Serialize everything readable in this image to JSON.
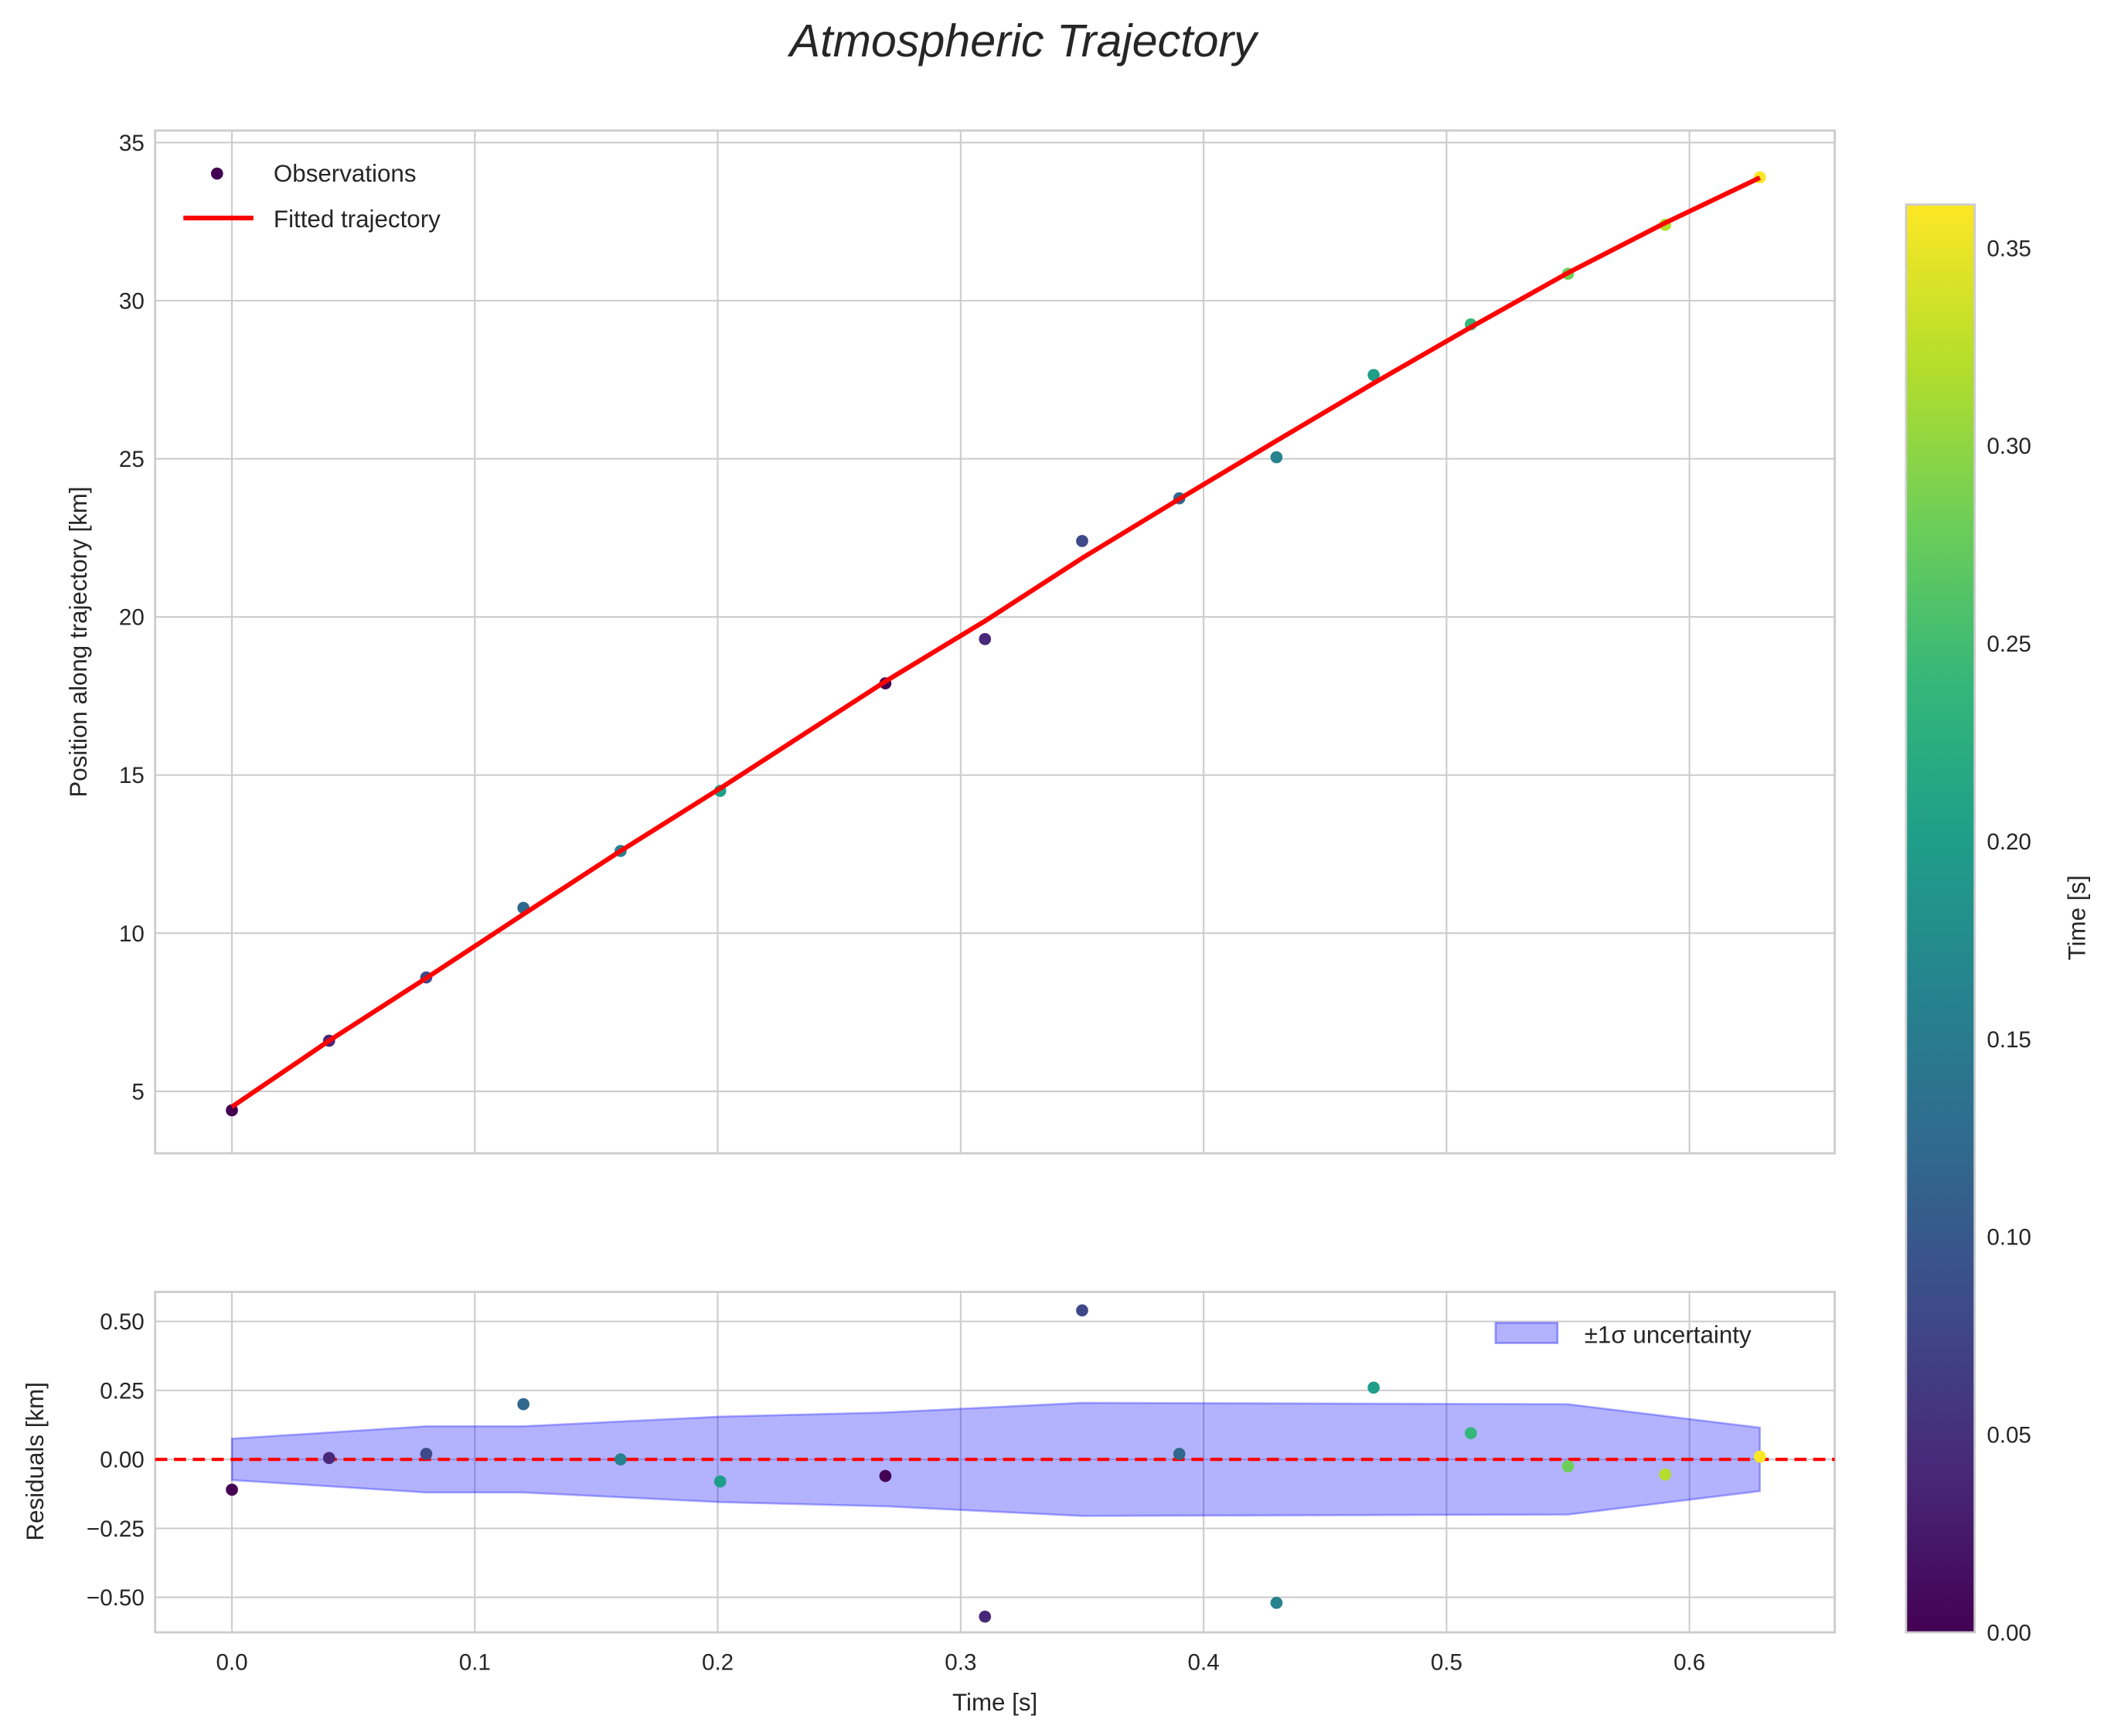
{
  "chart_data": [
    {
      "type": "scatter",
      "title": "Atmospheric Trajectory",
      "xlabel": "",
      "ylabel": "Position along trajectory [km]",
      "xlim": [
        -0.0316,
        0.6598
      ],
      "ylim": [
        3.04,
        35.38
      ],
      "xticks": [
        0.0,
        0.1,
        0.2,
        0.3,
        0.4,
        0.5,
        0.6
      ],
      "yticks": [
        5,
        10,
        15,
        20,
        25,
        30,
        35
      ],
      "grid": true,
      "legend": {
        "placement": "top-left",
        "entries": [
          "Observations",
          "Fitted trajectory"
        ]
      },
      "series": [
        {
          "name": "Observations",
          "type": "scatter",
          "x": [
            0.0,
            0.04,
            0.08,
            0.12,
            0.16,
            0.201,
            0.269,
            0.31,
            0.35,
            0.39,
            0.43,
            0.47,
            0.51,
            0.55,
            0.59,
            0.629
          ],
          "y": [
            4.4,
            6.6,
            8.6,
            10.8,
            12.6,
            14.5,
            17.9,
            19.3,
            22.4,
            23.75,
            25.05,
            27.65,
            29.25,
            30.85,
            32.4,
            33.9
          ],
          "color_values": [
            0.0,
            0.04,
            0.08,
            0.12,
            0.16,
            0.2,
            0.0,
            0.04,
            0.08,
            0.12,
            0.16,
            0.2,
            0.24,
            0.28,
            0.32,
            0.36
          ]
        },
        {
          "name": "Fitted trajectory",
          "type": "line",
          "color": "#ff0000",
          "x": [
            0.0,
            0.04,
            0.08,
            0.12,
            0.16,
            0.201,
            0.269,
            0.31,
            0.35,
            0.39,
            0.43,
            0.47,
            0.51,
            0.55,
            0.59,
            0.629
          ],
          "y": [
            4.51,
            6.6,
            8.58,
            10.6,
            12.6,
            14.58,
            17.96,
            19.87,
            21.86,
            23.73,
            25.57,
            27.39,
            29.16,
            30.88,
            32.46,
            33.89
          ]
        }
      ],
      "colorbar": {
        "label": "Time [s]",
        "range": [
          0.0,
          0.361
        ],
        "ticks": [
          "0.00",
          "0.05",
          "0.10",
          "0.15",
          "0.20",
          "0.25",
          "0.30",
          "0.35"
        ],
        "tick_values": [
          0,
          0.05,
          0.1,
          0.15,
          0.2,
          0.25,
          0.3,
          0.35
        ],
        "colormap": "viridis"
      }
    },
    {
      "type": "scatter",
      "xlabel": "Time [s]",
      "ylabel": "Residuals [km]",
      "xlim": [
        -0.0316,
        0.6598
      ],
      "ylim": [
        -0.627,
        0.607
      ],
      "xticks": [
        0.0,
        0.1,
        0.2,
        0.3,
        0.4,
        0.5,
        0.6
      ],
      "yticks": [
        0.5,
        0.25,
        0.0,
        -0.25,
        -0.5
      ],
      "ytick_labels": [
        "0.50",
        "0.25",
        "0.00",
        "−0.25",
        "−0.50"
      ],
      "xtick_labels": [
        "0.0",
        "0.1",
        "0.2",
        "0.3",
        "0.4",
        "0.5",
        "0.6"
      ],
      "grid": true,
      "legend": {
        "placement": "top-right",
        "entries": [
          "±1σ uncertainty"
        ]
      },
      "residuals": {
        "x": [
          0.0,
          0.04,
          0.08,
          0.12,
          0.16,
          0.201,
          0.269,
          0.31,
          0.35,
          0.39,
          0.43,
          0.47,
          0.51,
          0.55,
          0.59,
          0.629
        ],
        "y": [
          -0.11,
          0.005,
          0.02,
          0.2,
          0.0,
          -0.08,
          -0.06,
          -0.57,
          0.54,
          0.02,
          -0.52,
          0.26,
          0.095,
          -0.025,
          -0.055,
          0.01
        ],
        "color_values": [
          0.0,
          0.04,
          0.08,
          0.12,
          0.16,
          0.2,
          0.0,
          0.04,
          0.08,
          0.12,
          0.16,
          0.2,
          0.24,
          0.28,
          0.32,
          0.36
        ]
      },
      "uncertainty_band": {
        "name": "±1σ uncertainty",
        "color": "#0000ff",
        "alpha": 0.3,
        "x": [
          0.0,
          0.08,
          0.12,
          0.201,
          0.269,
          0.35,
          0.55,
          0.629
        ],
        "sigma": [
          0.075,
          0.12,
          0.12,
          0.155,
          0.17,
          0.205,
          0.2,
          0.115
        ]
      },
      "zero_line": {
        "y": 0,
        "color": "#ff0000",
        "style": "dashed"
      }
    }
  ]
}
